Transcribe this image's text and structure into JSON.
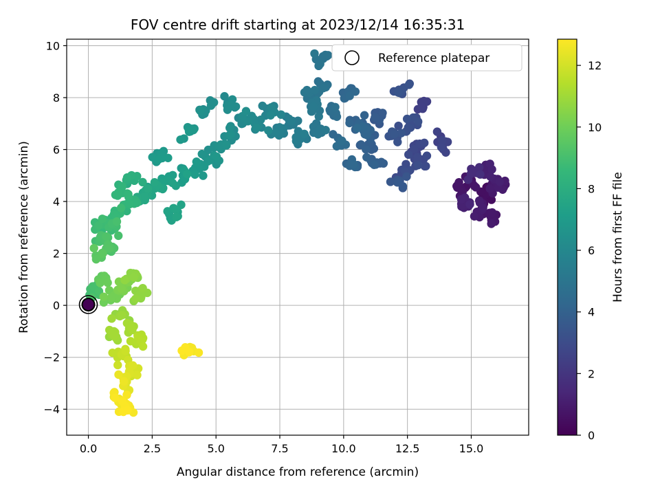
{
  "chart_data": {
    "type": "scatter",
    "title": "FOV centre drift starting at 2023/12/14 16:35:31",
    "xlabel": "Angular distance from reference (arcmin)",
    "ylabel": "Rotation from reference (arcmin)",
    "xlim": [
      -0.85,
      17.25
    ],
    "ylim": [
      -5.0,
      10.25
    ],
    "xticks": [
      0.0,
      2.5,
      5.0,
      7.5,
      10.0,
      12.5,
      15.0
    ],
    "xtick_labels": [
      "0.0",
      "2.5",
      "5.0",
      "7.5",
      "10.0",
      "12.5",
      "15.0"
    ],
    "yticks": [
      -4,
      -2,
      0,
      2,
      4,
      6,
      8,
      10
    ],
    "ytick_labels": [
      "−4",
      "−2",
      "0",
      "2",
      "4",
      "6",
      "8",
      "10"
    ],
    "grid": true,
    "legend": {
      "position": "upper right",
      "entries": [
        "Reference platepar"
      ]
    },
    "reference_point": {
      "x": 0.0,
      "y": 0.0,
      "label": "Reference platepar"
    },
    "colorbar": {
      "label": "Hours from first FF file",
      "colormap": "viridis",
      "range": [
        0,
        12.85
      ],
      "ticks": [
        0,
        2,
        4,
        6,
        8,
        10,
        12
      ],
      "tick_labels": [
        "0",
        "2",
        "4",
        "6",
        "8",
        "10",
        "12"
      ]
    },
    "colormap_stops": [
      "#440154",
      "#482878",
      "#3e4989",
      "#31688e",
      "#26828e",
      "#1f9e89",
      "#35b779",
      "#6ece58",
      "#b5de2b",
      "#fde725"
    ],
    "clusters_x_y_hours": [
      [
        15.7,
        4.3,
        0.4
      ],
      [
        15.0,
        4.8,
        0.6
      ],
      [
        14.6,
        4.5,
        0.7
      ],
      [
        15.9,
        4.6,
        0.9
      ],
      [
        15.3,
        3.6,
        1.0
      ],
      [
        16.2,
        4.7,
        0.9
      ],
      [
        15.6,
        5.2,
        1.1
      ],
      [
        14.8,
        3.9,
        1.2
      ],
      [
        15.2,
        5.1,
        1.6
      ],
      [
        15.8,
        3.4,
        0.8
      ],
      [
        15.4,
        4.0,
        0.5
      ],
      [
        13.1,
        7.7,
        2.4
      ],
      [
        12.9,
        6.1,
        2.7
      ],
      [
        12.4,
        5.2,
        3.0
      ],
      [
        13.9,
        6.2,
        2.6
      ],
      [
        12.6,
        7.0,
        3.1
      ],
      [
        12.0,
        6.6,
        3.4
      ],
      [
        12.3,
        8.3,
        3.3
      ],
      [
        11.5,
        7.3,
        3.6
      ],
      [
        11.0,
        6.2,
        3.8
      ],
      [
        12.9,
        5.6,
        2.9
      ],
      [
        11.3,
        5.5,
        3.9
      ],
      [
        12.2,
        4.8,
        3.5
      ],
      [
        10.6,
        7.0,
        4.1
      ],
      [
        10.2,
        8.2,
        4.3
      ],
      [
        9.7,
        7.4,
        4.6
      ],
      [
        9.9,
        6.3,
        4.4
      ],
      [
        10.8,
        6.8,
        4.2
      ],
      [
        9.3,
        8.4,
        4.8
      ],
      [
        8.7,
        8.1,
        5.0
      ],
      [
        9.2,
        9.5,
        4.9
      ],
      [
        9.1,
        6.8,
        5.1
      ],
      [
        8.9,
        7.6,
        5.2
      ],
      [
        10.3,
        5.4,
        4.2
      ],
      [
        8.0,
        7.1,
        5.3
      ],
      [
        7.5,
        6.7,
        5.6
      ],
      [
        7.1,
        7.5,
        5.8
      ],
      [
        6.6,
        6.9,
        6.0
      ],
      [
        6.1,
        7.2,
        6.1
      ],
      [
        5.6,
        6.6,
        6.3
      ],
      [
        5.1,
        6.1,
        6.5
      ],
      [
        4.8,
        5.6,
        6.7
      ],
      [
        4.3,
        5.3,
        6.9
      ],
      [
        4.6,
        7.5,
        6.3
      ],
      [
        5.5,
        7.7,
        6.2
      ],
      [
        3.7,
        5.0,
        7.1
      ],
      [
        3.1,
        4.8,
        7.3
      ],
      [
        2.6,
        4.5,
        7.5
      ],
      [
        2.2,
        4.2,
        7.7
      ],
      [
        3.5,
        3.6,
        7.4
      ],
      [
        4.0,
        6.7,
        6.8
      ],
      [
        1.8,
        4.8,
        8.0
      ],
      [
        1.6,
        3.9,
        8.3
      ],
      [
        1.3,
        4.4,
        8.4
      ],
      [
        1.0,
        3.5,
        8.6
      ],
      [
        0.8,
        3.0,
        8.9
      ],
      [
        0.6,
        2.6,
        9.1
      ],
      [
        0.4,
        1.9,
        9.5
      ],
      [
        0.9,
        2.2,
        9.2
      ],
      [
        0.6,
        1.0,
        9.8
      ],
      [
        0.9,
        0.3,
        10.1
      ],
      [
        1.4,
        0.8,
        10.3
      ],
      [
        1.8,
        1.1,
        10.6
      ],
      [
        1.2,
        -0.4,
        10.8
      ],
      [
        1.6,
        -0.9,
        11.1
      ],
      [
        1.9,
        -1.4,
        11.4
      ],
      [
        1.3,
        -1.9,
        11.8
      ],
      [
        1.7,
        -2.4,
        12.1
      ],
      [
        1.4,
        -3.0,
        12.4
      ],
      [
        1.2,
        -3.6,
        12.6
      ],
      [
        1.5,
        -4.0,
        12.8
      ],
      [
        3.9,
        -1.8,
        12.7
      ],
      [
        1.0,
        -1.0,
        11.0
      ],
      [
        0.2,
        0.5,
        9.0
      ],
      [
        2.0,
        0.4,
        10.7
      ],
      [
        0.5,
        3.2,
        8.7
      ],
      [
        2.8,
        5.7,
        6.9
      ],
      [
        8.3,
        6.4,
        5.4
      ]
    ]
  }
}
